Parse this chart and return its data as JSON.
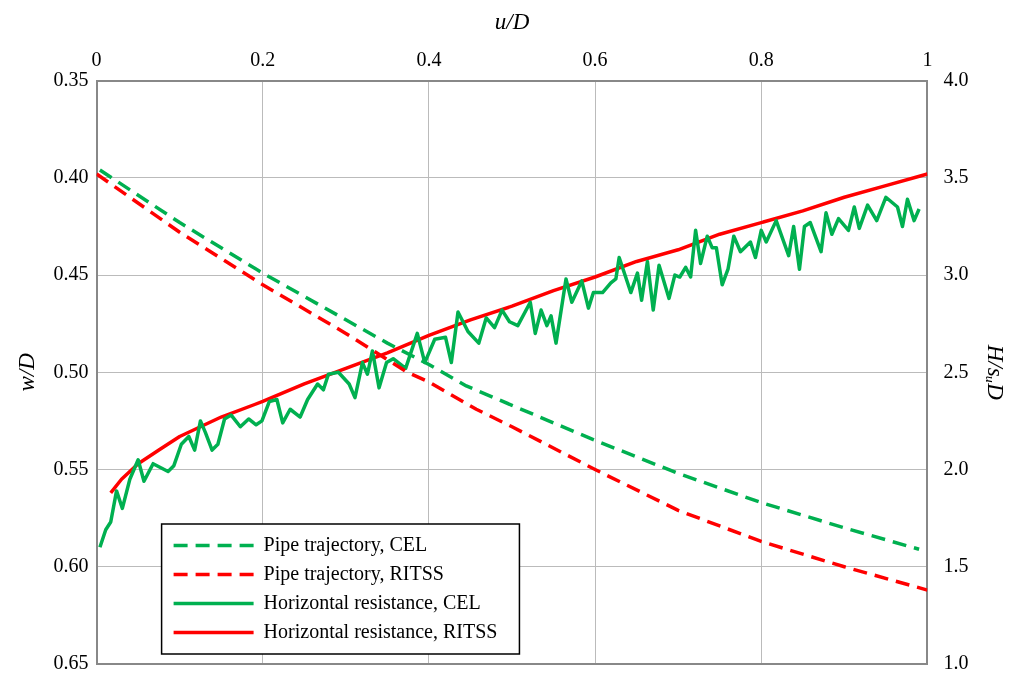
{
  "chart_data": {
    "type": "line",
    "xlabel": "u/D",
    "ylabel": "w/D",
    "y2label": "H/sᵤD",
    "xlim": [
      0,
      1
    ],
    "xticks": [
      0,
      0.2,
      0.4,
      0.6,
      0.8,
      1
    ],
    "ylim": [
      0.65,
      0.35
    ],
    "yticks": [
      {
        "value": 0.35,
        "label": "0.35"
      },
      {
        "value": 0.4,
        "label": "0.40"
      },
      {
        "value": 0.45,
        "label": "0.45"
      },
      {
        "value": 0.5,
        "label": "0.50"
      },
      {
        "value": 0.55,
        "label": "0.55"
      },
      {
        "value": 0.6,
        "label": "0.60"
      },
      {
        "value": 0.65,
        "label": "0.65"
      }
    ],
    "y2lim": [
      1,
      4
    ],
    "y2ticks": [
      {
        "value": 1,
        "label": "1.0"
      },
      {
        "value": 1.5,
        "label": "1.5"
      },
      {
        "value": 2,
        "label": "2.0"
      },
      {
        "value": 2.5,
        "label": "2.5"
      },
      {
        "value": 3,
        "label": "3.0"
      },
      {
        "value": 3.5,
        "label": "3.5"
      },
      {
        "value": 4,
        "label": "4.0"
      }
    ],
    "grid": true,
    "legend": "bottom left",
    "marker": "none",
    "series": [
      {
        "name": "Pipe trajectory, CEL",
        "color": "#00b050",
        "line_style": "dashed",
        "axis": "y",
        "x": [
          0.004,
          0.1,
          0.2,
          0.3,
          0.35,
          0.4,
          0.445,
          0.5,
          0.6,
          0.7,
          0.8,
          0.9,
          0.99
        ],
        "values": [
          0.396,
          0.423,
          0.449,
          0.473,
          0.485,
          0.496,
          0.507,
          0.517,
          0.535,
          0.552,
          0.567,
          0.58,
          0.591
        ]
      },
      {
        "name": "Pipe trajectory, RITSS",
        "color": "#ff0000",
        "line_style": "dashed",
        "axis": "y",
        "x": [
          0,
          0.1,
          0.2,
          0.3,
          0.374,
          0.4,
          0.457,
          0.5,
          0.6,
          0.7,
          0.8,
          0.9,
          1
        ],
        "values": [
          0.398,
          0.428,
          0.455,
          0.48,
          0.5,
          0.505,
          0.519,
          0.528,
          0.55,
          0.571,
          0.587,
          0.6,
          0.612
        ]
      },
      {
        "name": "Horizontal resistance, CEL",
        "color": "#00b050",
        "line_style": "solid",
        "axis": "y2",
        "x": [
          0.004,
          0.011,
          0.017,
          0.024,
          0.031,
          0.04,
          0.05,
          0.057,
          0.068,
          0.086,
          0.093,
          0.102,
          0.111,
          0.118,
          0.125,
          0.131,
          0.139,
          0.146,
          0.154,
          0.162,
          0.173,
          0.183,
          0.192,
          0.199,
          0.208,
          0.217,
          0.224,
          0.233,
          0.245,
          0.254,
          0.266,
          0.273,
          0.279,
          0.291,
          0.304,
          0.311,
          0.32,
          0.326,
          0.332,
          0.34,
          0.349,
          0.357,
          0.372,
          0.386,
          0.395,
          0.407,
          0.42,
          0.427,
          0.435,
          0.447,
          0.46,
          0.469,
          0.479,
          0.488,
          0.497,
          0.507,
          0.522,
          0.528,
          0.535,
          0.542,
          0.547,
          0.553,
          0.565,
          0.572,
          0.584,
          0.592,
          0.598,
          0.609,
          0.619,
          0.625,
          0.629,
          0.643,
          0.651,
          0.656,
          0.663,
          0.67,
          0.677,
          0.689,
          0.696,
          0.702,
          0.709,
          0.715,
          0.721,
          0.727,
          0.735,
          0.741,
          0.746,
          0.753,
          0.76,
          0.767,
          0.775,
          0.787,
          0.793,
          0.8,
          0.806,
          0.818,
          0.833,
          0.839,
          0.846,
          0.852,
          0.859,
          0.872,
          0.878,
          0.885,
          0.893,
          0.905,
          0.912,
          0.918,
          0.928,
          0.939,
          0.95,
          0.964,
          0.97,
          0.976,
          0.984,
          0.99
        ],
        "values": [
          1.6,
          1.69,
          1.73,
          1.89,
          1.8,
          1.95,
          2.05,
          1.94,
          2.03,
          1.99,
          2.02,
          2.13,
          2.17,
          2.1,
          2.25,
          2.19,
          2.1,
          2.13,
          2.26,
          2.28,
          2.22,
          2.26,
          2.23,
          2.25,
          2.35,
          2.36,
          2.24,
          2.31,
          2.27,
          2.36,
          2.44,
          2.41,
          2.49,
          2.5,
          2.44,
          2.37,
          2.55,
          2.49,
          2.61,
          2.42,
          2.55,
          2.57,
          2.52,
          2.7,
          2.55,
          2.67,
          2.68,
          2.55,
          2.81,
          2.71,
          2.65,
          2.78,
          2.73,
          2.82,
          2.76,
          2.74,
          2.86,
          2.7,
          2.82,
          2.74,
          2.79,
          2.65,
          2.98,
          2.86,
          2.97,
          2.83,
          2.91,
          2.91,
          2.96,
          2.98,
          3.09,
          2.91,
          3.01,
          2.87,
          3.07,
          2.82,
          3.05,
          2.88,
          3,
          2.99,
          3.04,
          2.99,
          3.23,
          3.06,
          3.2,
          3.14,
          3.14,
          2.95,
          3.03,
          3.2,
          3.12,
          3.17,
          3.09,
          3.23,
          3.17,
          3.28,
          3.1,
          3.25,
          3.03,
          3.25,
          3.27,
          3.12,
          3.32,
          3.21,
          3.29,
          3.23,
          3.35,
          3.24,
          3.36,
          3.28,
          3.4,
          3.35,
          3.25,
          3.39,
          3.28,
          3.34
        ]
      },
      {
        "name": "Horizontal resistance, RITSS",
        "color": "#ff0000",
        "line_style": "solid",
        "axis": "y2",
        "x": [
          0.017,
          0.03,
          0.05,
          0.075,
          0.1,
          0.15,
          0.2,
          0.25,
          0.3,
          0.35,
          0.4,
          0.45,
          0.5,
          0.55,
          0.6,
          0.65,
          0.7,
          0.75,
          0.8,
          0.85,
          0.9,
          0.95,
          1
        ],
        "values": [
          1.88,
          1.95,
          2.03,
          2.1,
          2.17,
          2.27,
          2.35,
          2.44,
          2.52,
          2.6,
          2.69,
          2.77,
          2.84,
          2.92,
          2.99,
          3.07,
          3.13,
          3.21,
          3.27,
          3.33,
          3.4,
          3.46,
          3.52
        ]
      }
    ]
  }
}
